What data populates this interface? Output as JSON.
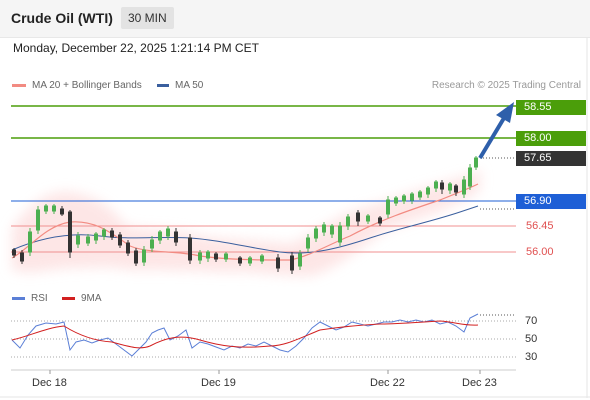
{
  "header": {
    "title": "Crude Oil (WTI)",
    "timeframe": "30 MIN"
  },
  "datetime": "Monday, December 22, 2025 1:21:14 PM CET",
  "legend": {
    "ma20_label": "MA 20 + Bollinger Bands",
    "ma50_label": "MA 50",
    "credit": "Research © 2025 Trading Central",
    "ma20_color": "#f28b82",
    "ma50_color": "#3a5f9e"
  },
  "price_levels": [
    {
      "value": "58.55",
      "kind": "target",
      "color": "#4b9e0a"
    },
    {
      "value": "58.00",
      "kind": "target",
      "color": "#4b9e0a"
    },
    {
      "value": "57.65",
      "kind": "last",
      "color": "#333333"
    },
    {
      "value": "56.90",
      "kind": "pivot",
      "color": "#1e5fd6"
    },
    {
      "value": "56.45",
      "kind": "support",
      "color": "#e05050"
    },
    {
      "value": "56.00",
      "kind": "support",
      "color": "#e05050"
    }
  ],
  "rsi_legend": {
    "rsi_label": "RSI",
    "ma_label": "9MA",
    "rsi_color": "#5b7fd6",
    "ma_color": "#d22020"
  },
  "rsi_levels": [
    "70",
    "50",
    "30"
  ],
  "x_axis": [
    "Dec 18",
    "Dec 19",
    "Dec 22",
    "Dec 23"
  ],
  "chart_data": {
    "type": "candlestick",
    "instrument": "Crude Oil (WTI)",
    "interval": "30 MIN",
    "ylim": [
      55.5,
      58.8
    ],
    "x_ticks": [
      "Dec 18",
      "Dec 19",
      "Dec 22",
      "Dec 23"
    ],
    "close_series": [
      56.02,
      55.95,
      56.4,
      56.85,
      56.8,
      56.75,
      56.0,
      56.25,
      56.3,
      56.32,
      56.3,
      56.1,
      56.0,
      55.95,
      56.1,
      56.3,
      56.35,
      56.2,
      56.0,
      55.98,
      55.95,
      55.96,
      55.93,
      56.0,
      55.9,
      55.82,
      56.1,
      56.4,
      56.5,
      56.6,
      56.7,
      56.65,
      56.6,
      56.9,
      57.05,
      57.15,
      57.25,
      57.3,
      57.2,
      57.45,
      57.65
    ],
    "rsi": {
      "levels": [
        70,
        50,
        30
      ]
    }
  }
}
